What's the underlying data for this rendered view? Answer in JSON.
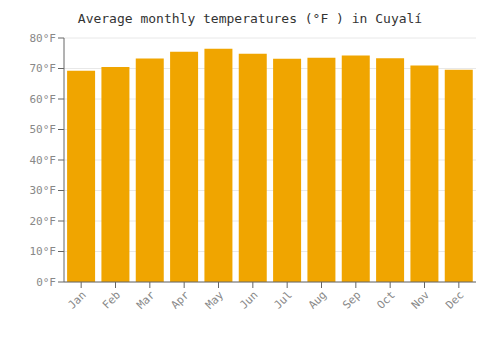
{
  "chart_data": {
    "type": "bar",
    "title": "Average monthly temperatures (°F ) in Cuyalí",
    "categories": [
      "Jan",
      "Feb",
      "Mar",
      "Apr",
      "May",
      "Jun",
      "Jul",
      "Aug",
      "Sep",
      "Oct",
      "Nov",
      "Dec"
    ],
    "values": [
      69.3,
      70.5,
      73.3,
      75.5,
      76.5,
      74.8,
      73.2,
      73.5,
      74.3,
      73.4,
      71.0,
      69.6
    ],
    "color": "#F0A500",
    "ylim": [
      0,
      80
    ],
    "yticks": [
      {
        "value": 0,
        "label": "0°F"
      },
      {
        "value": 10,
        "label": "10°F"
      },
      {
        "value": 20,
        "label": "20°F"
      },
      {
        "value": 30,
        "label": "30°F"
      },
      {
        "value": 40,
        "label": "40°F"
      },
      {
        "value": 50,
        "label": "50°F"
      },
      {
        "value": 60,
        "label": "60°F"
      },
      {
        "value": 70,
        "label": "70°F"
      },
      {
        "value": 80,
        "label": "80°F"
      }
    ],
    "grid": true
  }
}
